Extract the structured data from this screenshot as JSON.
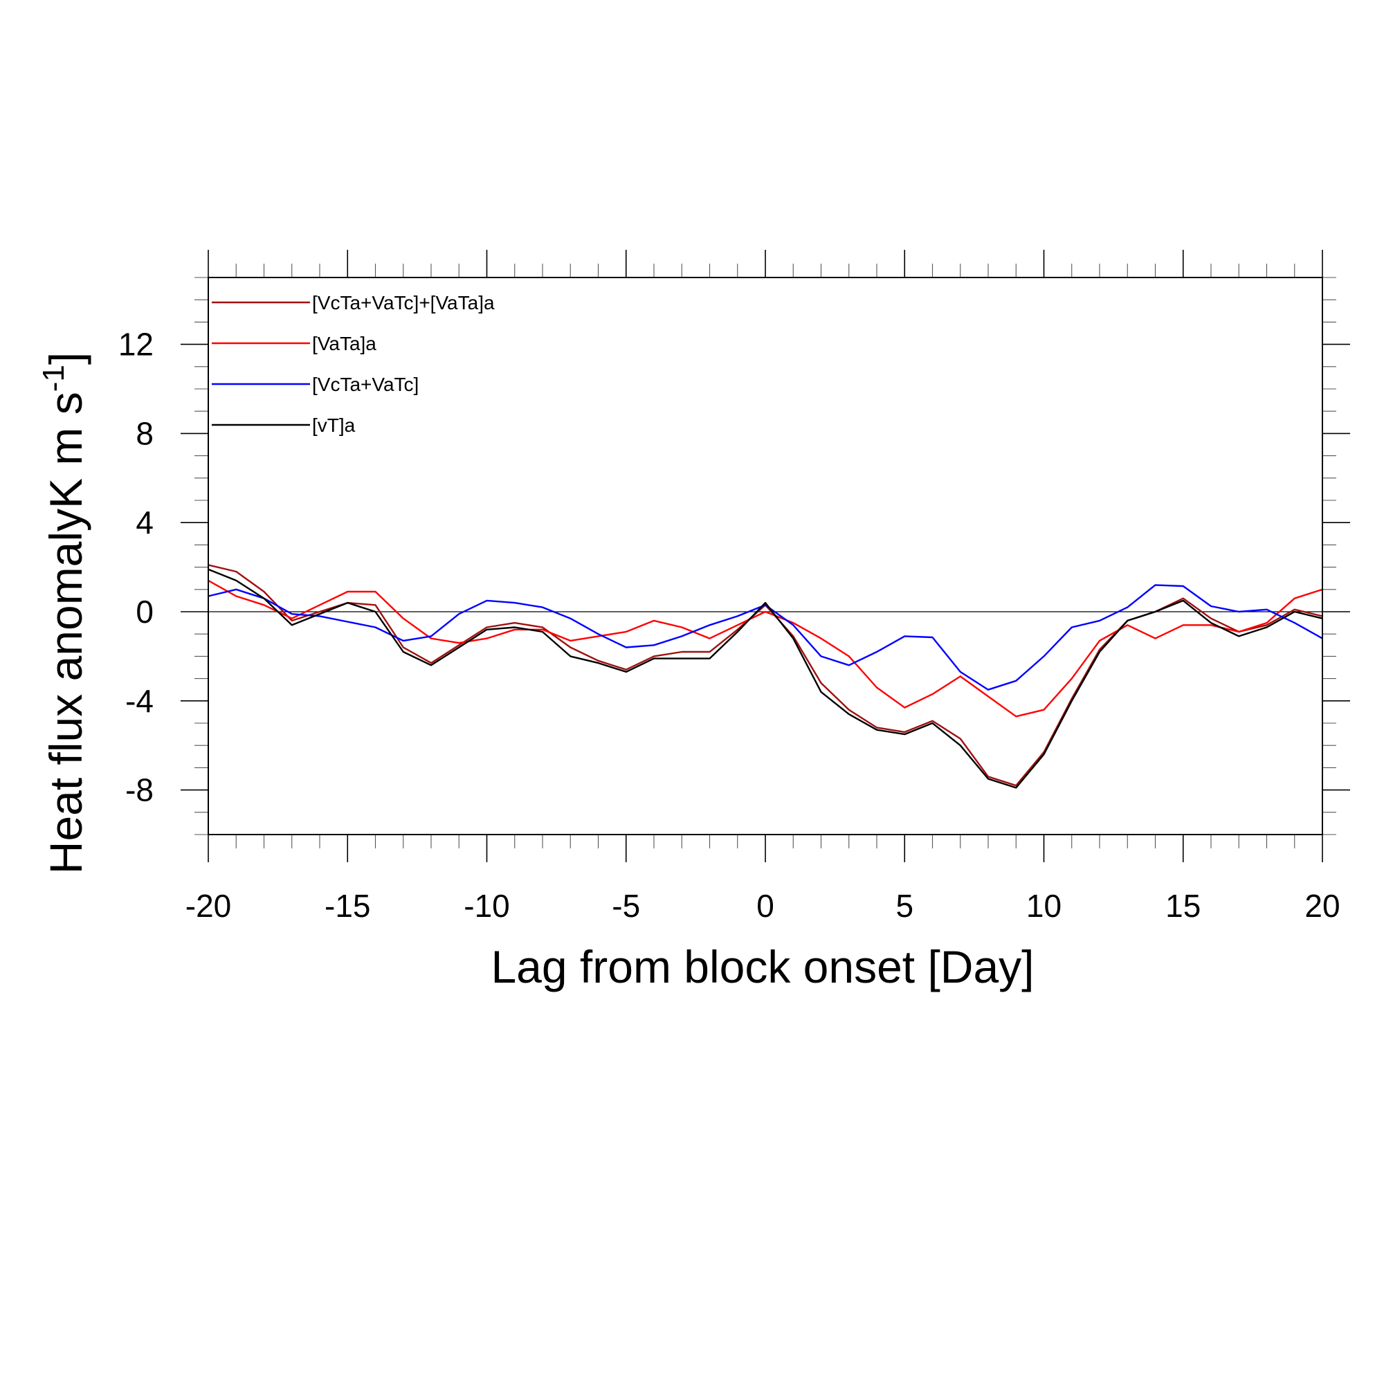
{
  "chart_data": {
    "type": "line",
    "xlabel": "Lag from block onset [Day]",
    "ylabel_main": "Heat flux anomalyK m s",
    "ylabel_sup": "-1",
    "ylabel_close": "]",
    "xlim": [
      -20,
      20
    ],
    "ylim": [
      -10,
      15
    ],
    "xticks": [
      -20,
      -15,
      -10,
      -5,
      0,
      5,
      10,
      15,
      20
    ],
    "yticks": [
      -8,
      -4,
      0,
      4,
      8,
      12
    ],
    "reference_line": 0,
    "legend_position": "top-left",
    "x": [
      -20,
      -19,
      -18,
      -17,
      -16,
      -15,
      -14,
      -13,
      -12,
      -11,
      -10,
      -9,
      -8,
      -7,
      -6,
      -5,
      -4,
      -3,
      -2,
      -1,
      0,
      1,
      2,
      3,
      4,
      5,
      6,
      7,
      8,
      9,
      10,
      11,
      12,
      13,
      14,
      15,
      16,
      17,
      18,
      19,
      20
    ],
    "series": [
      {
        "name": "[VcTa+VaTc]+[VaTa]a",
        "color": "#a01010",
        "values": [
          2.1,
          1.8,
          0.9,
          -0.4,
          0.0,
          0.4,
          0.3,
          -1.6,
          -2.3,
          -1.5,
          -0.7,
          -0.5,
          -0.7,
          -1.6,
          -2.2,
          -2.6,
          -2.0,
          -1.8,
          -1.8,
          -0.8,
          0.3,
          -1.1,
          -3.2,
          -4.4,
          -5.2,
          -5.4,
          -4.9,
          -5.7,
          -7.4,
          -7.8,
          -6.3,
          -3.9,
          -1.7,
          -0.4,
          0.0,
          0.6,
          -0.3,
          -0.9,
          -0.6,
          0.1,
          -0.2
        ]
      },
      {
        "name": "[VaTa]a",
        "color": "#ff0000",
        "values": [
          1.4,
          0.7,
          0.3,
          -0.3,
          0.3,
          0.9,
          0.9,
          -0.3,
          -1.2,
          -1.4,
          -1.2,
          -0.8,
          -0.8,
          -1.3,
          -1.1,
          -0.9,
          -0.4,
          -0.7,
          -1.2,
          -0.6,
          0.0,
          -0.5,
          -1.2,
          -2.0,
          -3.4,
          -4.3,
          -3.7,
          -2.9,
          -3.8,
          -4.7,
          -4.4,
          -3.0,
          -1.3,
          -0.6,
          -1.2,
          -0.6,
          -0.6,
          -0.9,
          -0.5,
          0.6,
          1.0
        ]
      },
      {
        "name": "[VcTa+VaTc]",
        "color": "#0000ff",
        "values": [
          0.7,
          1.0,
          0.6,
          -0.1,
          -0.2,
          -0.45,
          -0.7,
          -1.3,
          -1.1,
          -0.1,
          0.5,
          0.4,
          0.2,
          -0.3,
          -1.0,
          -1.6,
          -1.5,
          -1.1,
          -0.6,
          -0.2,
          0.3,
          -0.6,
          -2.0,
          -2.4,
          -1.8,
          -1.1,
          -1.15,
          -2.7,
          -3.5,
          -3.1,
          -2.0,
          -0.7,
          -0.4,
          0.2,
          1.2,
          1.15,
          0.25,
          0.0,
          0.1,
          -0.5,
          -1.2
        ]
      },
      {
        "name": "[vT]a",
        "color": "#000000",
        "values": [
          1.9,
          1.4,
          0.6,
          -0.6,
          -0.1,
          0.4,
          0.0,
          -1.8,
          -2.4,
          -1.6,
          -0.8,
          -0.7,
          -0.9,
          -2.0,
          -2.3,
          -2.7,
          -2.1,
          -2.1,
          -2.1,
          -0.9,
          0.4,
          -1.2,
          -3.6,
          -4.6,
          -5.3,
          -5.5,
          -5.0,
          -6.0,
          -7.5,
          -7.9,
          -6.4,
          -4.0,
          -1.8,
          -0.4,
          0.0,
          0.5,
          -0.5,
          -1.1,
          -0.7,
          0.0,
          -0.3
        ]
      }
    ]
  }
}
